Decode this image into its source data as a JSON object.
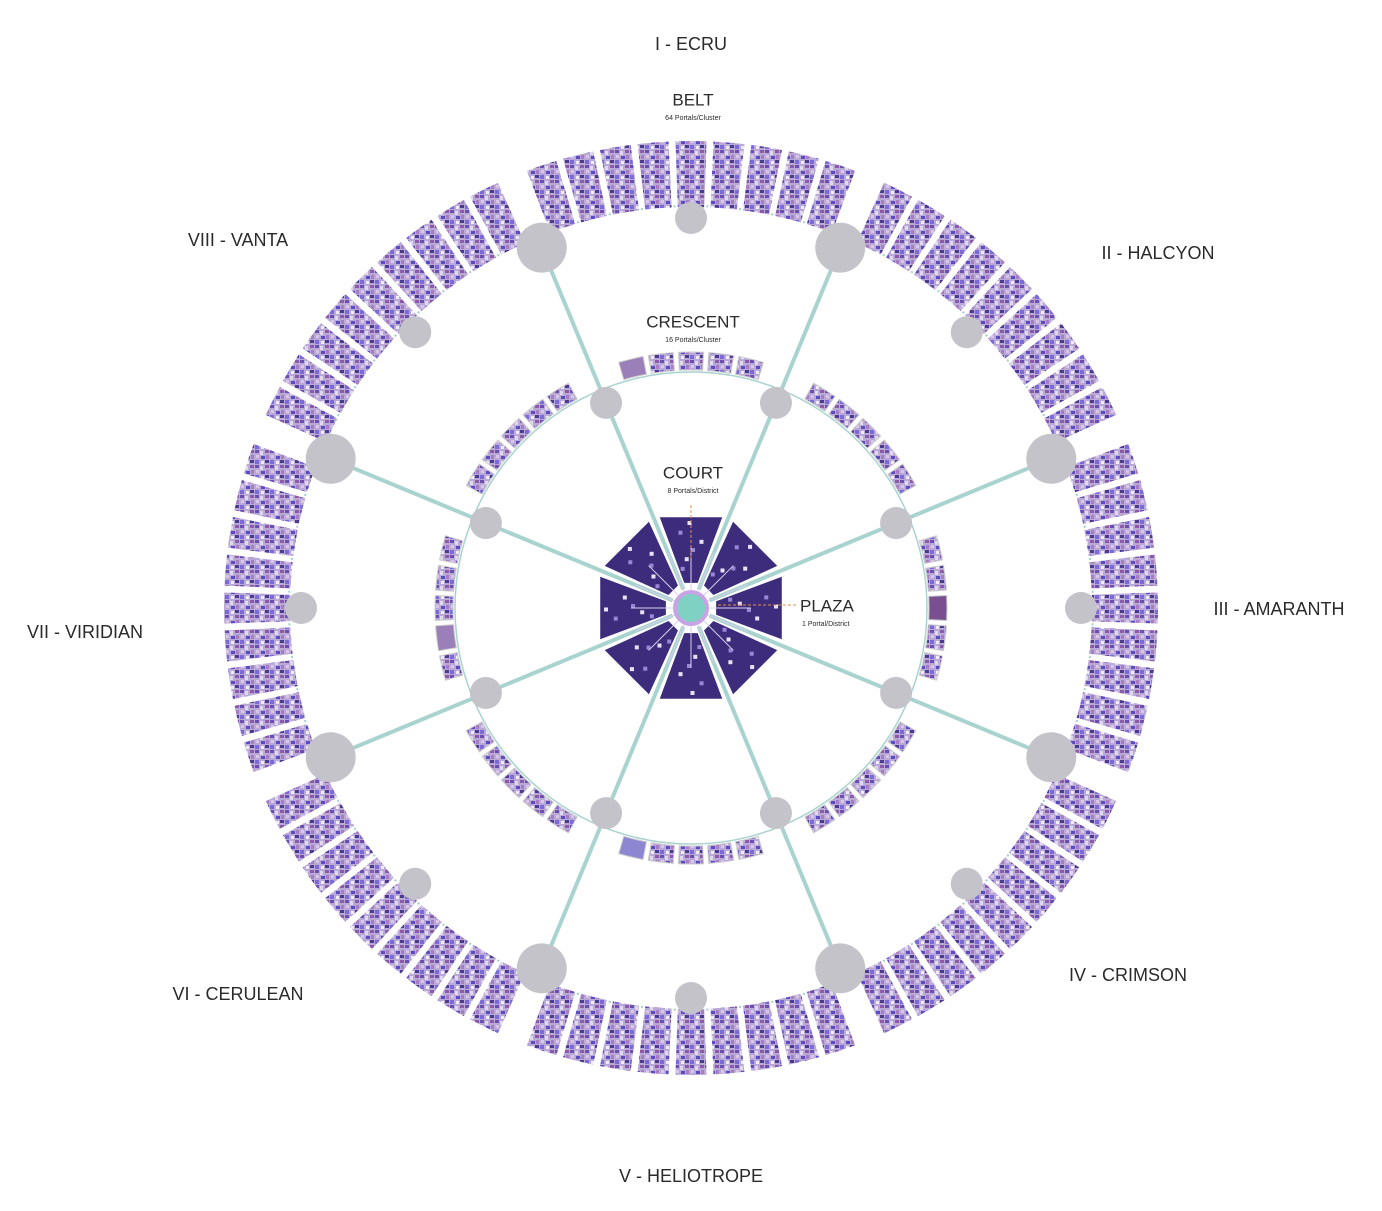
{
  "districts": [
    "I - ECRU",
    "II - HALCYON",
    "III - AMARANTH",
    "IV - CRIMSON",
    "V - HELIOTROPE",
    "VI - CERULEAN",
    "VII - VIRIDIAN",
    "VIII - VANTA"
  ],
  "rings": {
    "belt": {
      "title": "BELT",
      "subtitle": "64 Portals/Cluster"
    },
    "crescent": {
      "title": "CRESCENT",
      "subtitle": "16 Portals/Cluster"
    },
    "court": {
      "title": "COURT",
      "subtitle": "8 Portals/District"
    },
    "plaza": {
      "title": "PLAZA",
      "subtitle": "1 Portal/District"
    }
  }
}
